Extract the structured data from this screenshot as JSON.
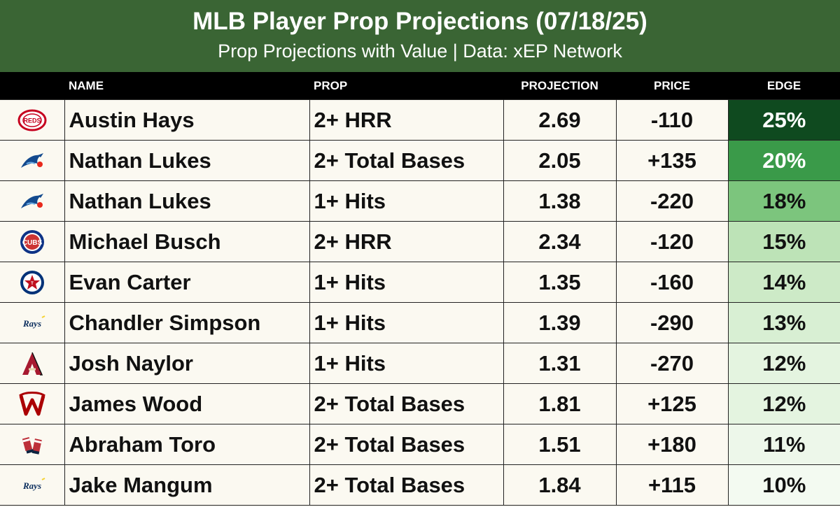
{
  "header": {
    "title": "MLB Player Prop Projections (07/18/25)",
    "subtitle": "Prop Projections with Value | Data: xEP Network"
  },
  "columns": {
    "name": "NAME",
    "prop": "PROP",
    "projection": "PROJECTION",
    "price": "PRICE",
    "edge": "EDGE"
  },
  "colors": {
    "header_bg": "#3a6534",
    "column_header_bg": "#000000",
    "row_bg": "#fbf9f1"
  },
  "rows": [
    {
      "team_logo": "reds-logo-icon",
      "name": "Austin Hays",
      "prop": "2+ HRR",
      "projection": "2.69",
      "price": "-110",
      "edge": "25%",
      "edge_bg": "#0f4a1f",
      "edge_color": "#ffffff"
    },
    {
      "team_logo": "blue-jays-logo-icon",
      "name": "Nathan Lukes",
      "prop": "2+ Total Bases",
      "projection": "2.05",
      "price": "+135",
      "edge": "20%",
      "edge_bg": "#3a9a49",
      "edge_color": "#ffffff"
    },
    {
      "team_logo": "blue-jays-logo-icon",
      "name": "Nathan Lukes",
      "prop": "1+ Hits",
      "projection": "1.38",
      "price": "-220",
      "edge": "18%",
      "edge_bg": "#7cc57d",
      "edge_color": "#111111"
    },
    {
      "team_logo": "cubs-logo-icon",
      "name": "Michael Busch",
      "prop": "2+ HRR",
      "projection": "2.34",
      "price": "-120",
      "edge": "15%",
      "edge_bg": "#bde3b7",
      "edge_color": "#111111"
    },
    {
      "team_logo": "rangers-logo-icon",
      "name": "Evan Carter",
      "prop": "1+ Hits",
      "projection": "1.35",
      "price": "-160",
      "edge": "14%",
      "edge_bg": "#cdeac7",
      "edge_color": "#111111"
    },
    {
      "team_logo": "rays-logo-icon",
      "name": "Chandler Simpson",
      "prop": "1+ Hits",
      "projection": "1.39",
      "price": "-290",
      "edge": "13%",
      "edge_bg": "#d8efd3",
      "edge_color": "#111111"
    },
    {
      "team_logo": "diamondbacks-logo-icon",
      "name": "Josh Naylor",
      "prop": "1+ Hits",
      "projection": "1.31",
      "price": "-270",
      "edge": "12%",
      "edge_bg": "#e4f4e0",
      "edge_color": "#111111"
    },
    {
      "team_logo": "nationals-logo-icon",
      "name": "James Wood",
      "prop": "2+ Total Bases",
      "projection": "1.81",
      "price": "+125",
      "edge": "12%",
      "edge_bg": "#e4f4e0",
      "edge_color": "#111111"
    },
    {
      "team_logo": "red-sox-logo-icon",
      "name": "Abraham Toro",
      "prop": "2+ Total Bases",
      "projection": "1.51",
      "price": "+180",
      "edge": "11%",
      "edge_bg": "#edf7ea",
      "edge_color": "#111111"
    },
    {
      "team_logo": "rays-logo-icon",
      "name": "Jake Mangum",
      "prop": "2+ Total Bases",
      "projection": "1.84",
      "price": "+115",
      "edge": "10%",
      "edge_bg": "#f3faf1",
      "edge_color": "#111111"
    }
  ]
}
